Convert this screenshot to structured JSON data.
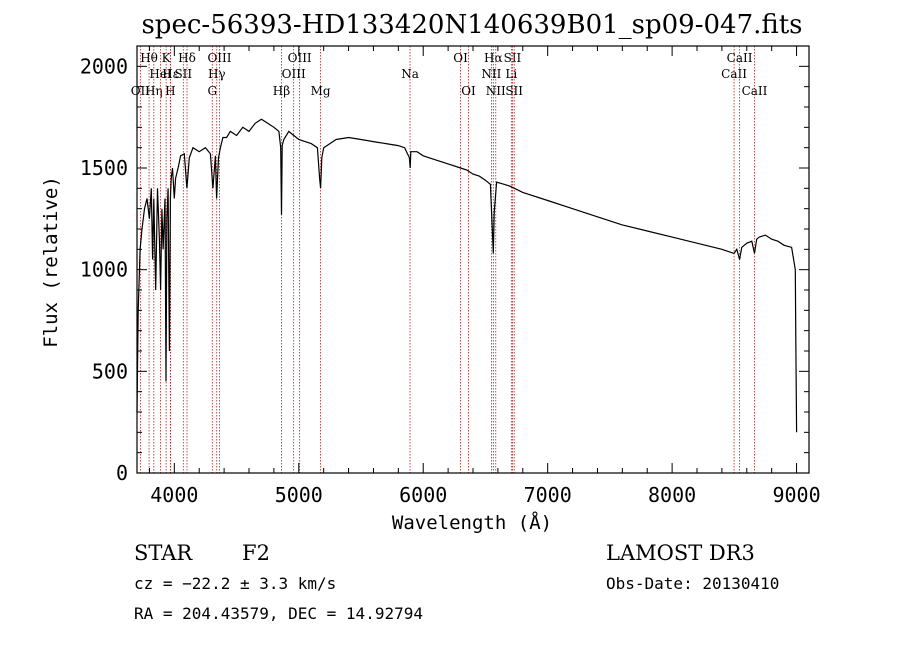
{
  "chart_data": {
    "type": "line",
    "title": "spec-56393-HD133420N140639B01_sp09-047.fits",
    "xlabel": "Wavelength (Å)",
    "ylabel": "Flux (relative)",
    "xlim": [
      3700,
      9100
    ],
    "ylim": [
      0,
      2100
    ],
    "x_ticks": [
      4000,
      5000,
      6000,
      7000,
      8000,
      9000
    ],
    "y_ticks": [
      0,
      500,
      1000,
      1500,
      2000
    ],
    "grid": false,
    "series": [
      {
        "name": "flux",
        "x": [
          3700,
          3710,
          3725,
          3740,
          3760,
          3780,
          3800,
          3815,
          3825,
          3835,
          3850,
          3865,
          3880,
          3890,
          3900,
          3910,
          3925,
          3933,
          3940,
          3950,
          3960,
          3968,
          3975,
          3985,
          4000,
          4010,
          4030,
          4050,
          4080,
          4101,
          4120,
          4150,
          4200,
          4250,
          4290,
          4310,
          4330,
          4340,
          4355,
          4370,
          4390,
          4420,
          4450,
          4500,
          4550,
          4600,
          4650,
          4700,
          4750,
          4800,
          4840,
          4855,
          4861,
          4867,
          4880,
          4920,
          4960,
          5000,
          5050,
          5100,
          5150,
          5167,
          5175,
          5185,
          5200,
          5250,
          5300,
          5400,
          5500,
          5600,
          5700,
          5800,
          5850,
          5889,
          5895,
          5900,
          5950,
          6000,
          6100,
          6200,
          6300,
          6350,
          6400,
          6450,
          6500,
          6540,
          6555,
          6563,
          6570,
          6590,
          6650,
          6700,
          6800,
          7000,
          7200,
          7400,
          7600,
          7800,
          8000,
          8200,
          8400,
          8450,
          8498,
          8520,
          8542,
          8560,
          8600,
          8640,
          8662,
          8680,
          8700,
          8750,
          8800,
          8850,
          8900,
          8960,
          8990,
          8995,
          9000
        ],
        "values": [
          300,
          800,
          1100,
          1200,
          1300,
          1350,
          1250,
          1400,
          1050,
          1350,
          900,
          1400,
          1150,
          900,
          1300,
          1100,
          1350,
          450,
          1250,
          1400,
          600,
          1350,
          1450,
          1500,
          1350,
          1450,
          1500,
          1560,
          1570,
          1400,
          1550,
          1600,
          1580,
          1600,
          1570,
          1400,
          1560,
          1350,
          1550,
          1600,
          1650,
          1650,
          1680,
          1660,
          1700,
          1680,
          1720,
          1740,
          1720,
          1700,
          1680,
          1600,
          1270,
          1610,
          1640,
          1680,
          1660,
          1640,
          1630,
          1620,
          1600,
          1450,
          1400,
          1550,
          1600,
          1620,
          1640,
          1650,
          1640,
          1630,
          1620,
          1610,
          1600,
          1550,
          1500,
          1580,
          1580,
          1560,
          1540,
          1520,
          1500,
          1490,
          1470,
          1460,
          1440,
          1420,
          1200,
          1080,
          1280,
          1430,
          1420,
          1410,
          1380,
          1340,
          1300,
          1260,
          1220,
          1190,
          1160,
          1130,
          1100,
          1090,
          1080,
          1100,
          1050,
          1110,
          1130,
          1140,
          1080,
          1150,
          1160,
          1170,
          1150,
          1140,
          1120,
          1110,
          1000,
          600,
          200
        ]
      }
    ],
    "spectral_lines": [
      {
        "label": "OII",
        "wl": 3727,
        "row": 3
      },
      {
        "label": "Hθ",
        "wl": 3797,
        "row": 1
      },
      {
        "label": "Hη",
        "wl": 3835,
        "row": 3
      },
      {
        "label": "HeI",
        "wl": 3889,
        "row": 2
      },
      {
        "label": "K",
        "wl": 3934,
        "row": 1
      },
      {
        "label": "H",
        "wl": 3968,
        "row": 3
      },
      {
        "label": "Hε",
        "wl": 3970,
        "row": 2
      },
      {
        "label": "SII",
        "wl": 4072,
        "row": 2
      },
      {
        "label": "Hδ",
        "wl": 4102,
        "row": 1
      },
      {
        "label": "G",
        "wl": 4305,
        "row": 3
      },
      {
        "label": "Hγ",
        "wl": 4341,
        "row": 2
      },
      {
        "label": "OIII",
        "wl": 4363,
        "row": 1
      },
      {
        "label": "Hβ",
        "wl": 4861,
        "row": 3
      },
      {
        "label": "OIII",
        "wl": 4959,
        "row": 2
      },
      {
        "label": "OIII",
        "wl": 5007,
        "row": 1
      },
      {
        "label": "Mg",
        "wl": 5175,
        "row": 3
      },
      {
        "label": "Na",
        "wl": 5894,
        "row": 2
      },
      {
        "label": "OI",
        "wl": 6300,
        "row": 1
      },
      {
        "label": "OI",
        "wl": 6364,
        "row": 3
      },
      {
        "label": "NII",
        "wl": 6548,
        "row": 2
      },
      {
        "label": "Hα",
        "wl": 6563,
        "row": 1
      },
      {
        "label": "NII",
        "wl": 6583,
        "row": 3
      },
      {
        "label": "Li",
        "wl": 6708,
        "row": 2
      },
      {
        "label": "SII",
        "wl": 6717,
        "row": 1
      },
      {
        "label": "SII",
        "wl": 6731,
        "row": 3
      },
      {
        "label": "CaII",
        "wl": 8498,
        "row": 2
      },
      {
        "label": "CaII",
        "wl": 8542,
        "row": 1
      },
      {
        "label": "CaII",
        "wl": 8662,
        "row": 3
      }
    ]
  },
  "info": {
    "object_class": "STAR",
    "subclass": "F2",
    "survey": "LAMOST DR3",
    "cz": "cz = −22.2 ± 3.3 km/s",
    "obs_date": "Obs-Date: 20130410",
    "coords": "RA = 204.43579, DEC =  14.92794"
  },
  "colors": {
    "axis": "#000000",
    "spectrum": "#000000",
    "line_marker": "#b22222"
  }
}
